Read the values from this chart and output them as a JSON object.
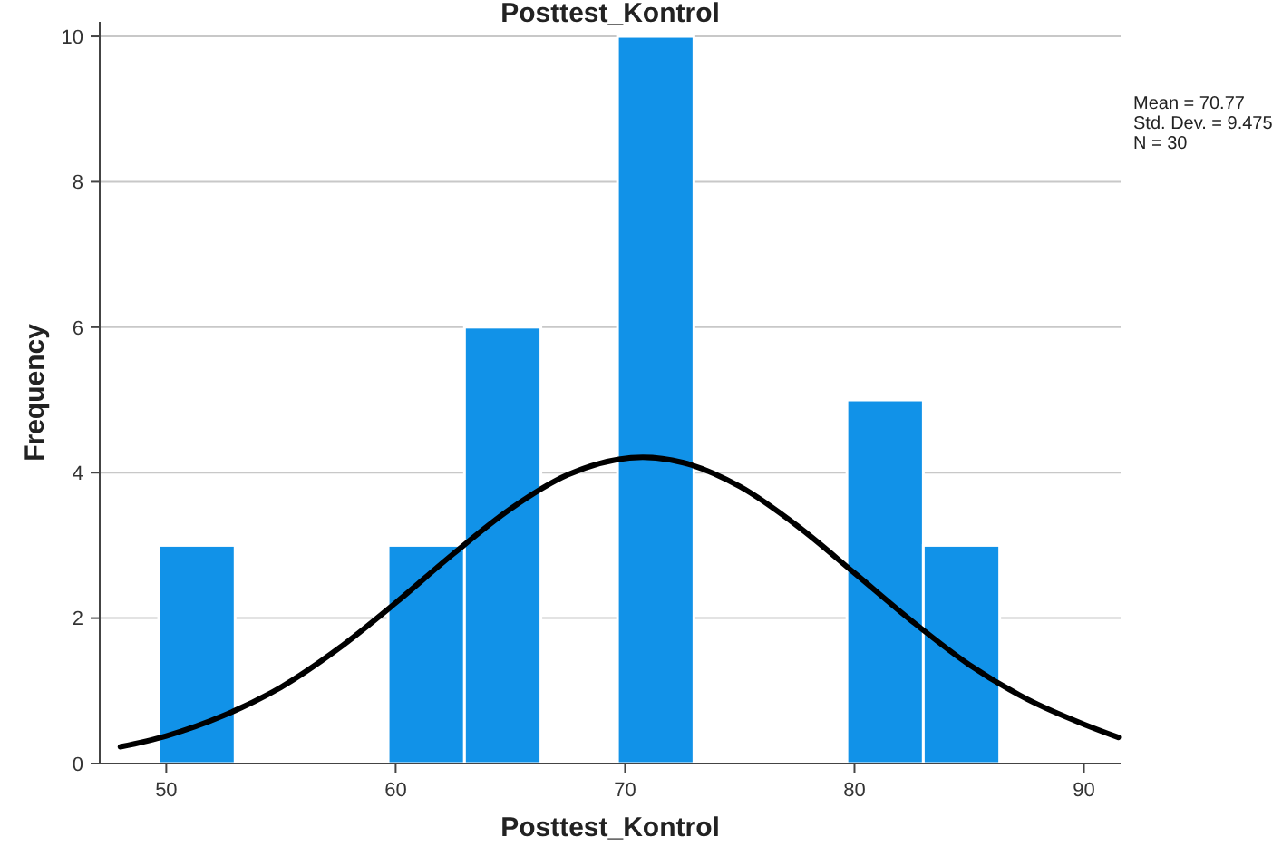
{
  "chart_data": {
    "type": "histogram",
    "title": "Posttest_Kontrol",
    "xlabel": "Posttest_Kontrol",
    "ylabel": "Frequency",
    "bins": [
      49.67,
      53,
      56.33,
      59.67,
      63,
      66.33,
      69.67,
      73,
      76.33,
      79.67,
      83,
      86.33
    ],
    "series": [
      {
        "color": "#1192e8",
        "values": [
          3,
          0,
          0,
          3,
          6,
          0,
          10,
          0,
          0,
          5,
          3
        ]
      },
      {
        "type": "line",
        "color": "#000000",
        "x": [
          48,
          50,
          52.5,
          55,
          57.5,
          60,
          62.5,
          65,
          67.5,
          70.77,
          72.5,
          75,
          77.5,
          80,
          82.5,
          85,
          87.5,
          90,
          91.5
        ],
        "values": [
          0.23,
          0.38,
          0.66,
          1.05,
          1.58,
          2.21,
          2.88,
          3.5,
          3.97,
          4.21,
          4.14,
          3.81,
          3.27,
          2.62,
          1.96,
          1.36,
          0.89,
          0.54,
          0.36
        ]
      }
    ],
    "xlim": [
      47.1,
      91.6
    ],
    "xticks": [
      50,
      60,
      70,
      80,
      90
    ],
    "ylim": [
      0,
      10.2
    ],
    "yticks": [
      0,
      2,
      4,
      6,
      8,
      10
    ],
    "grid": "y",
    "marker": "none",
    "annotations": [
      "Mean = 70.77",
      "Std. Dev. = 9.475",
      "N = 30"
    ]
  }
}
